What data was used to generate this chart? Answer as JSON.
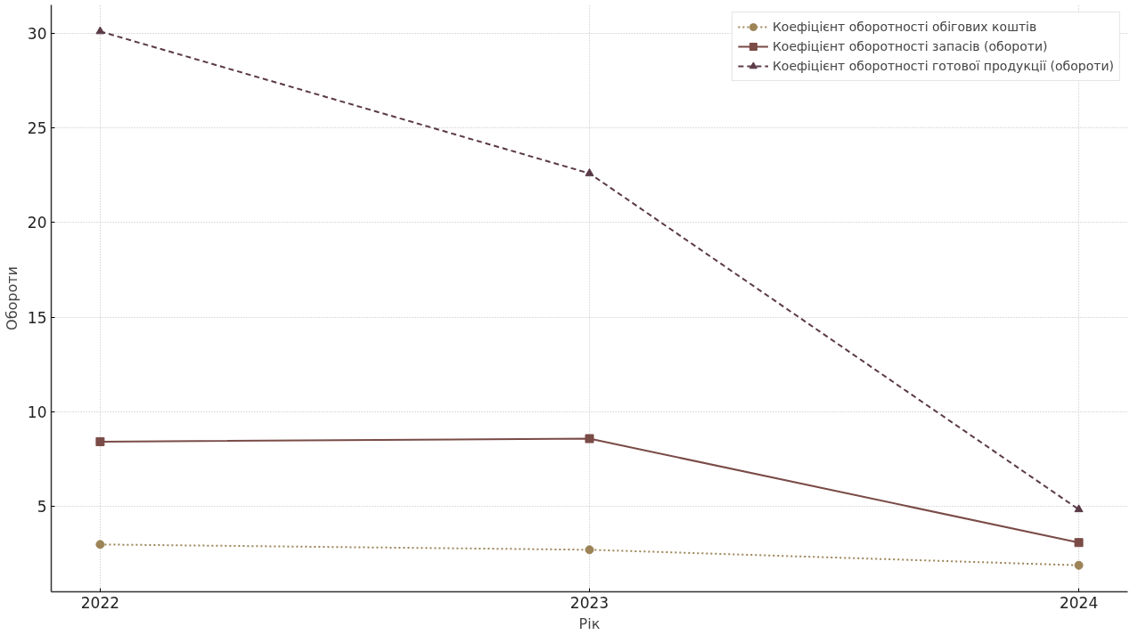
{
  "chart_data": {
    "type": "line",
    "xlabel": "Рік",
    "ylabel": "Обороти",
    "x": [
      2022,
      2023,
      2024
    ],
    "xlim": [
      2021.9,
      2024.1
    ],
    "xticks": [
      2022,
      2023,
      2024
    ],
    "ylim": [
      0.5,
      31.5
    ],
    "yticks": [
      5,
      10,
      15,
      20,
      25,
      30
    ],
    "grid": true,
    "legend": "top right",
    "series": [
      {
        "name": "Коефіцієнт оборотності обігових коштів",
        "color": "#9c8457",
        "marker": "circle",
        "line_style": "dotted",
        "values": [
          3.0,
          2.72,
          1.9
        ]
      },
      {
        "name": "Коефіцієнт оборотності запасів (обороти)",
        "color": "#7a4b47",
        "marker": "square",
        "line_style": "solid",
        "values": [
          8.43,
          8.59,
          3.1
        ]
      },
      {
        "name": "Коефіцієнт оборотності готової продукції (обороти)",
        "color": "#5b3a48",
        "marker": "triangle",
        "line_style": "dashed",
        "values": [
          30.1,
          22.6,
          4.85
        ]
      }
    ]
  }
}
